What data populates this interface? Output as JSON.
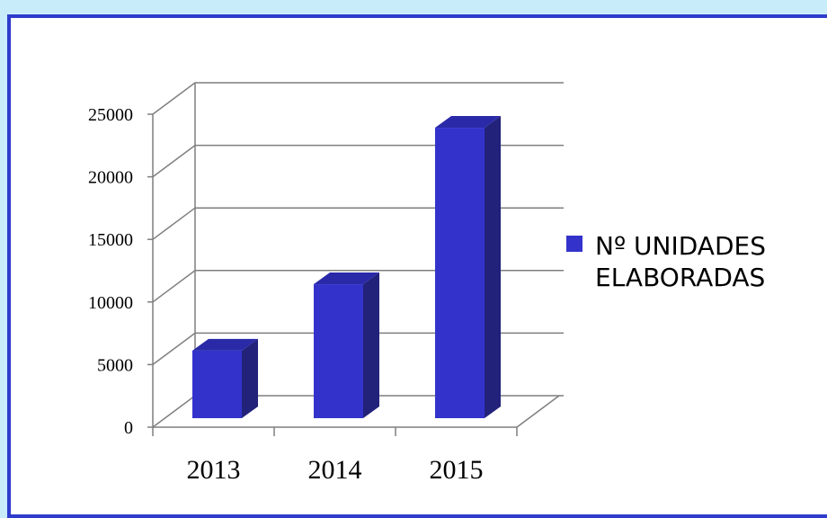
{
  "chart_data": {
    "type": "bar",
    "categories": [
      "2013",
      "2014",
      "2015"
    ],
    "series": [
      {
        "name": "Nº UNIDADES ELABORADAS",
        "values": [
          5400,
          10700,
          23200
        ],
        "color": "#3333cc"
      }
    ],
    "y_ticks": [
      "0",
      "5000",
      "10000",
      "15000",
      "20000",
      "25000"
    ],
    "ylim": [
      0,
      25000
    ],
    "grid": true,
    "legend": {
      "position": "right",
      "lines": [
        "Nº UNIDADES",
        "ELABORADAS"
      ]
    },
    "colors": {
      "bar_front": "#3333cc",
      "bar_side": "#22227a",
      "bar_top": "#2a2aa8",
      "frame": "#2f3ccc",
      "background": "#c9ecfb",
      "grid": "#7f7f7f"
    }
  }
}
